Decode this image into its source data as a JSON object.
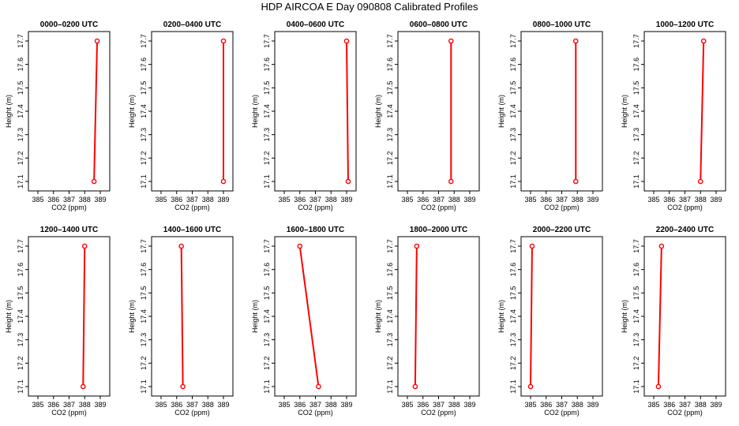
{
  "title": "HDP AIRCOA E  Day 090808  Calibrated Profiles",
  "colors": {
    "profile": "#ff0000",
    "axis": "#000000"
  },
  "chart_data": [
    {
      "type": "line",
      "title": "0000–0200 UTC",
      "xlabel": "CO2 (ppm)",
      "ylabel": "Height (m)",
      "xlim": [
        385,
        389
      ],
      "ylim": [
        17.1,
        17.7
      ],
      "xticks": [
        385,
        386,
        387,
        388,
        389
      ],
      "yticks": [
        17.1,
        17.2,
        17.3,
        17.4,
        17.5,
        17.6,
        17.7
      ],
      "grid": false,
      "series": [
        {
          "x": [
            388.6,
            388.8
          ],
          "y": [
            17.1,
            17.7
          ]
        }
      ]
    },
    {
      "type": "line",
      "title": "0200–0400 UTC",
      "xlabel": "CO2 (ppm)",
      "ylabel": "Height (m)",
      "xlim": [
        385,
        389
      ],
      "ylim": [
        17.1,
        17.7
      ],
      "xticks": [
        385,
        386,
        387,
        388,
        389
      ],
      "yticks": [
        17.1,
        17.2,
        17.3,
        17.4,
        17.5,
        17.6,
        17.7
      ],
      "grid": false,
      "series": [
        {
          "x": [
            389.0,
            389.0
          ],
          "y": [
            17.1,
            17.7
          ]
        }
      ]
    },
    {
      "type": "line",
      "title": "0400–0600 UTC",
      "xlabel": "CO2 (ppm)",
      "ylabel": "Height (m)",
      "xlim": [
        385,
        389
      ],
      "ylim": [
        17.1,
        17.7
      ],
      "xticks": [
        385,
        386,
        387,
        388,
        389
      ],
      "yticks": [
        17.1,
        17.2,
        17.3,
        17.4,
        17.5,
        17.6,
        17.7
      ],
      "grid": false,
      "series": [
        {
          "x": [
            389.1,
            389.0
          ],
          "y": [
            17.1,
            17.7
          ]
        }
      ]
    },
    {
      "type": "line",
      "title": "0600–0800 UTC",
      "xlabel": "CO2 (ppm)",
      "ylabel": "Height (m)",
      "xlim": [
        385,
        389
      ],
      "ylim": [
        17.1,
        17.7
      ],
      "xticks": [
        385,
        386,
        387,
        388,
        389
      ],
      "yticks": [
        17.1,
        17.2,
        17.3,
        17.4,
        17.5,
        17.6,
        17.7
      ],
      "grid": false,
      "series": [
        {
          "x": [
            387.8,
            387.8
          ],
          "y": [
            17.1,
            17.7
          ]
        }
      ]
    },
    {
      "type": "line",
      "title": "0800–1000 UTC",
      "xlabel": "CO2 (ppm)",
      "ylabel": "Height (m)",
      "xlim": [
        385,
        389
      ],
      "ylim": [
        17.1,
        17.7
      ],
      "xticks": [
        385,
        386,
        387,
        388,
        389
      ],
      "yticks": [
        17.1,
        17.2,
        17.3,
        17.4,
        17.5,
        17.6,
        17.7
      ],
      "grid": false,
      "series": [
        {
          "x": [
            387.9,
            387.9
          ],
          "y": [
            17.1,
            17.7
          ]
        }
      ]
    },
    {
      "type": "line",
      "title": "1000–1200 UTC",
      "xlabel": "CO2 (ppm)",
      "ylabel": "Height (m)",
      "xlim": [
        385,
        389
      ],
      "ylim": [
        17.1,
        17.7
      ],
      "xticks": [
        385,
        386,
        387,
        388,
        389
      ],
      "yticks": [
        17.1,
        17.2,
        17.3,
        17.4,
        17.5,
        17.6,
        17.7
      ],
      "grid": false,
      "series": [
        {
          "x": [
            388.0,
            388.2
          ],
          "y": [
            17.1,
            17.7
          ]
        }
      ]
    },
    {
      "type": "line",
      "title": "1200–1400 UTC",
      "xlabel": "CO2 (ppm)",
      "ylabel": "Height (m)",
      "xlim": [
        385,
        389
      ],
      "ylim": [
        17.1,
        17.7
      ],
      "xticks": [
        385,
        386,
        387,
        388,
        389
      ],
      "yticks": [
        17.1,
        17.2,
        17.3,
        17.4,
        17.5,
        17.6,
        17.7
      ],
      "grid": false,
      "series": [
        {
          "x": [
            387.9,
            388.0
          ],
          "y": [
            17.1,
            17.7
          ]
        }
      ]
    },
    {
      "type": "line",
      "title": "1400–1600 UTC",
      "xlabel": "CO2 (ppm)",
      "ylabel": "Height (m)",
      "xlim": [
        385,
        389
      ],
      "ylim": [
        17.1,
        17.7
      ],
      "xticks": [
        385,
        386,
        387,
        388,
        389
      ],
      "yticks": [
        17.1,
        17.2,
        17.3,
        17.4,
        17.5,
        17.6,
        17.7
      ],
      "grid": false,
      "series": [
        {
          "x": [
            386.4,
            386.3
          ],
          "y": [
            17.1,
            17.7
          ]
        }
      ]
    },
    {
      "type": "line",
      "title": "1600–1800 UTC",
      "xlabel": "CO2 (ppm)",
      "ylabel": "Height (m)",
      "xlim": [
        385,
        389
      ],
      "ylim": [
        17.1,
        17.7
      ],
      "xticks": [
        385,
        386,
        387,
        388,
        389
      ],
      "yticks": [
        17.1,
        17.2,
        17.3,
        17.4,
        17.5,
        17.6,
        17.7
      ],
      "grid": false,
      "series": [
        {
          "x": [
            387.2,
            386.0
          ],
          "y": [
            17.1,
            17.7
          ]
        }
      ]
    },
    {
      "type": "line",
      "title": "1800–2000 UTC",
      "xlabel": "CO2 (ppm)",
      "ylabel": "Height (m)",
      "xlim": [
        385,
        389
      ],
      "ylim": [
        17.1,
        17.7
      ],
      "xticks": [
        385,
        386,
        387,
        388,
        389
      ],
      "yticks": [
        17.1,
        17.2,
        17.3,
        17.4,
        17.5,
        17.6,
        17.7
      ],
      "grid": false,
      "series": [
        {
          "x": [
            385.5,
            385.6
          ],
          "y": [
            17.1,
            17.7
          ]
        }
      ]
    },
    {
      "type": "line",
      "title": "2000–2200 UTC",
      "xlabel": "CO2 (ppm)",
      "ylabel": "Height (m)",
      "xlim": [
        385,
        389
      ],
      "ylim": [
        17.1,
        17.7
      ],
      "xticks": [
        385,
        386,
        387,
        388,
        389
      ],
      "yticks": [
        17.1,
        17.2,
        17.3,
        17.4,
        17.5,
        17.6,
        17.7
      ],
      "grid": false,
      "series": [
        {
          "x": [
            385.0,
            385.1
          ],
          "y": [
            17.1,
            17.7
          ]
        }
      ]
    },
    {
      "type": "line",
      "title": "2200–2400 UTC",
      "xlabel": "CO2 (ppm)",
      "ylabel": "Height (m)",
      "xlim": [
        385,
        389
      ],
      "ylim": [
        17.1,
        17.7
      ],
      "xticks": [
        385,
        386,
        387,
        388,
        389
      ],
      "yticks": [
        17.1,
        17.2,
        17.3,
        17.4,
        17.5,
        17.6,
        17.7
      ],
      "grid": false,
      "series": [
        {
          "x": [
            385.3,
            385.5
          ],
          "y": [
            17.1,
            17.7
          ]
        }
      ]
    }
  ]
}
